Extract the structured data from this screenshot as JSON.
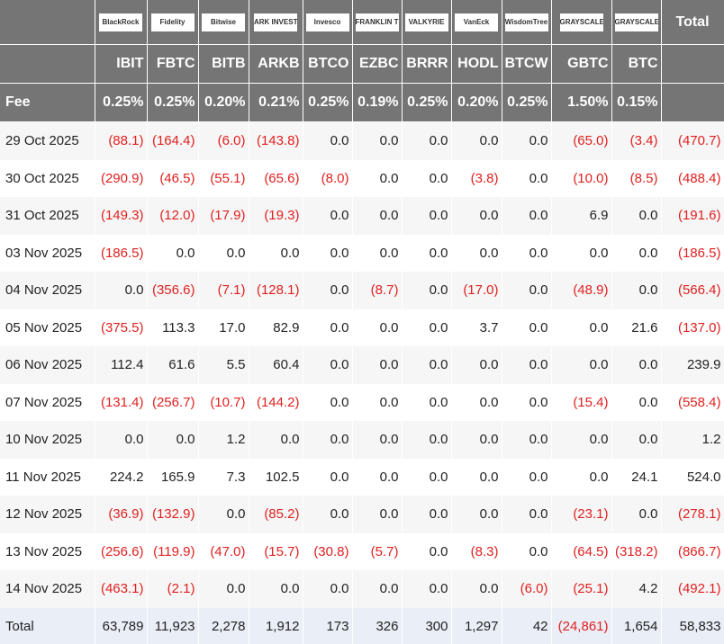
{
  "header": {
    "logos": [
      "BlackRock",
      "Fidelity",
      "Bitwise",
      "ARK INVEST",
      "Invesco",
      "FRANKLIN TEMPLETON",
      "VALKYRIE",
      "VanEck",
      "WisdomTree",
      "GRAYSCALE",
      "GRAYSCALE"
    ],
    "total_label": "Total"
  },
  "tickers": [
    "IBIT",
    "FBTC",
    "BITB",
    "ARKB",
    "BTCO",
    "EZBC",
    "BRRR",
    "HODL",
    "BTCW",
    "GBTC",
    "BTC"
  ],
  "fee_label": "Fee",
  "fees": [
    "0.25%",
    "0.25%",
    "0.20%",
    "0.21%",
    "0.25%",
    "0.19%",
    "0.25%",
    "0.20%",
    "0.25%",
    "1.50%",
    "0.15%"
  ],
  "rows": [
    {
      "date": "29 Oct 2025",
      "cells": [
        "(88.1)",
        "(164.4)",
        "(6.0)",
        "(143.8)",
        "0.0",
        "0.0",
        "0.0",
        "0.0",
        "0.0",
        "(65.0)",
        "(3.4)",
        "(470.7)"
      ]
    },
    {
      "date": "30 Oct 2025",
      "cells": [
        "(290.9)",
        "(46.5)",
        "(55.1)",
        "(65.6)",
        "(8.0)",
        "0.0",
        "0.0",
        "(3.8)",
        "0.0",
        "(10.0)",
        "(8.5)",
        "(488.4)"
      ]
    },
    {
      "date": "31 Oct 2025",
      "cells": [
        "(149.3)",
        "(12.0)",
        "(17.9)",
        "(19.3)",
        "0.0",
        "0.0",
        "0.0",
        "0.0",
        "0.0",
        "6.9",
        "0.0",
        "(191.6)"
      ]
    },
    {
      "date": "03 Nov 2025",
      "cells": [
        "(186.5)",
        "0.0",
        "0.0",
        "0.0",
        "0.0",
        "0.0",
        "0.0",
        "0.0",
        "0.0",
        "0.0",
        "0.0",
        "(186.5)"
      ]
    },
    {
      "date": "04 Nov 2025",
      "cells": [
        "0.0",
        "(356.6)",
        "(7.1)",
        "(128.1)",
        "0.0",
        "(8.7)",
        "0.0",
        "(17.0)",
        "0.0",
        "(48.9)",
        "0.0",
        "(566.4)"
      ]
    },
    {
      "date": "05 Nov 2025",
      "cells": [
        "(375.5)",
        "113.3",
        "17.0",
        "82.9",
        "0.0",
        "0.0",
        "0.0",
        "3.7",
        "0.0",
        "0.0",
        "21.6",
        "(137.0)"
      ]
    },
    {
      "date": "06 Nov 2025",
      "cells": [
        "112.4",
        "61.6",
        "5.5",
        "60.4",
        "0.0",
        "0.0",
        "0.0",
        "0.0",
        "0.0",
        "0.0",
        "0.0",
        "239.9"
      ]
    },
    {
      "date": "07 Nov 2025",
      "cells": [
        "(131.4)",
        "(256.7)",
        "(10.7)",
        "(144.2)",
        "0.0",
        "0.0",
        "0.0",
        "0.0",
        "0.0",
        "(15.4)",
        "0.0",
        "(558.4)"
      ]
    },
    {
      "date": "10 Nov 2025",
      "cells": [
        "0.0",
        "0.0",
        "1.2",
        "0.0",
        "0.0",
        "0.0",
        "0.0",
        "0.0",
        "0.0",
        "0.0",
        "0.0",
        "1.2"
      ]
    },
    {
      "date": "11 Nov 2025",
      "cells": [
        "224.2",
        "165.9",
        "7.3",
        "102.5",
        "0.0",
        "0.0",
        "0.0",
        "0.0",
        "0.0",
        "0.0",
        "24.1",
        "524.0"
      ]
    },
    {
      "date": "12 Nov 2025",
      "cells": [
        "(36.9)",
        "(132.9)",
        "0.0",
        "(85.2)",
        "0.0",
        "0.0",
        "0.0",
        "0.0",
        "0.0",
        "(23.1)",
        "0.0",
        "(278.1)"
      ]
    },
    {
      "date": "13 Nov 2025",
      "cells": [
        "(256.6)",
        "(119.9)",
        "(47.0)",
        "(15.7)",
        "(30.8)",
        "(5.7)",
        "0.0",
        "(8.3)",
        "0.0",
        "(64.5)",
        "(318.2)",
        "(866.7)"
      ]
    },
    {
      "date": "14 Nov 2025",
      "cells": [
        "(463.1)",
        "(2.1)",
        "0.0",
        "0.0",
        "0.0",
        "0.0",
        "0.0",
        "0.0",
        "(6.0)",
        "(25.1)",
        "4.2",
        "(492.1)"
      ]
    }
  ],
  "total_row": {
    "label": "Total",
    "cells": [
      "63,789",
      "11,923",
      "2,278",
      "1,912",
      "173",
      "326",
      "300",
      "1,297",
      "42",
      "(24,861)",
      "1,654",
      "58,833"
    ]
  }
}
